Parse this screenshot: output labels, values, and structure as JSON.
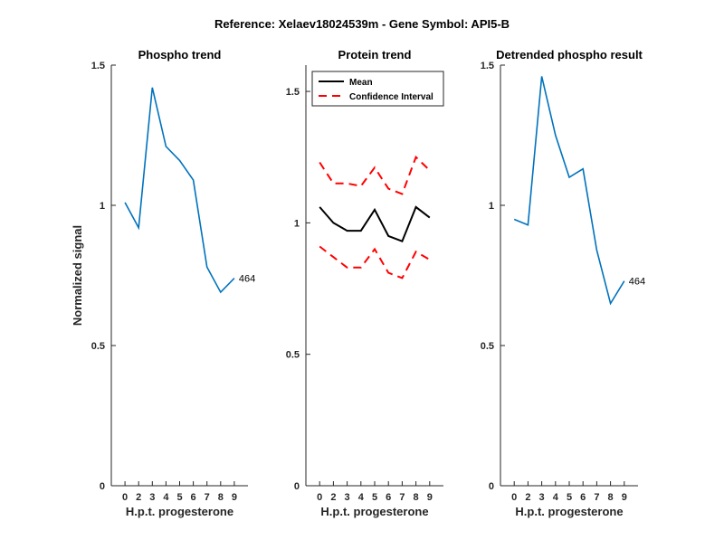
{
  "figure": {
    "title": "Reference:  Xelaev18024539m - Gene Symbol:  API5-B"
  },
  "chart_data": [
    {
      "type": "line",
      "title": "Phospho trend",
      "xlabel": "H.p.t. progesterone",
      "ylabel": "Normalized signal",
      "x_categories": [
        "0",
        "2",
        "3",
        "4",
        "5",
        "6",
        "7",
        "8",
        "9"
      ],
      "ylim": [
        0,
        1.5
      ],
      "yticks": [
        0,
        0.5,
        1,
        1.5
      ],
      "ytick_labels": [
        "0",
        "0.5",
        "1",
        "1.5"
      ],
      "grid": false,
      "series": [
        {
          "color": "#0072BD",
          "style": "solid",
          "values": [
            1.01,
            0.92,
            1.42,
            1.21,
            1.16,
            1.09,
            0.78,
            0.69,
            0.74
          ]
        }
      ],
      "annotation": {
        "text": "464",
        "at_index": 8
      }
    },
    {
      "type": "line",
      "title": "Protein trend",
      "xlabel": "H.p.t. progesterone",
      "ylabel": "",
      "x_categories": [
        "0",
        "2",
        "3",
        "4",
        "5",
        "6",
        "7",
        "8",
        "9"
      ],
      "ylim": [
        0,
        1.6
      ],
      "yticks": [
        0,
        0.5,
        1,
        1.5
      ],
      "ytick_labels": [
        "0",
        "0.5",
        "1",
        "1.5"
      ],
      "grid": false,
      "legend": {
        "position": "top-left"
      },
      "series": [
        {
          "name": "Mean",
          "color": "#000000",
          "style": "solid",
          "values": [
            1.06,
            1.0,
            0.97,
            0.97,
            1.05,
            0.95,
            0.93,
            1.06,
            1.02
          ]
        },
        {
          "name": "Confidence Interval",
          "color": "#FF0000",
          "style": "dashed",
          "values": [
            1.23,
            1.15,
            1.15,
            1.14,
            1.21,
            1.13,
            1.11,
            1.25,
            1.2
          ]
        },
        {
          "color": "#FF0000",
          "style": "dashed",
          "values": [
            0.91,
            0.87,
            0.83,
            0.83,
            0.9,
            0.81,
            0.79,
            0.89,
            0.86
          ]
        }
      ]
    },
    {
      "type": "line",
      "title": "Detrended phospho result",
      "xlabel": "H.p.t. progesterone",
      "ylabel": "",
      "x_categories": [
        "0",
        "2",
        "3",
        "4",
        "5",
        "6",
        "7",
        "8",
        "9"
      ],
      "ylim": [
        0,
        1.5
      ],
      "yticks": [
        0,
        0.5,
        1,
        1.5
      ],
      "ytick_labels": [
        "0",
        "0.5",
        "1",
        "1.5"
      ],
      "grid": false,
      "series": [
        {
          "color": "#0072BD",
          "style": "solid",
          "values": [
            0.95,
            0.93,
            1.46,
            1.25,
            1.1,
            1.13,
            0.84,
            0.65,
            0.73
          ]
        }
      ],
      "annotation": {
        "text": "464",
        "at_index": 8
      }
    }
  ]
}
